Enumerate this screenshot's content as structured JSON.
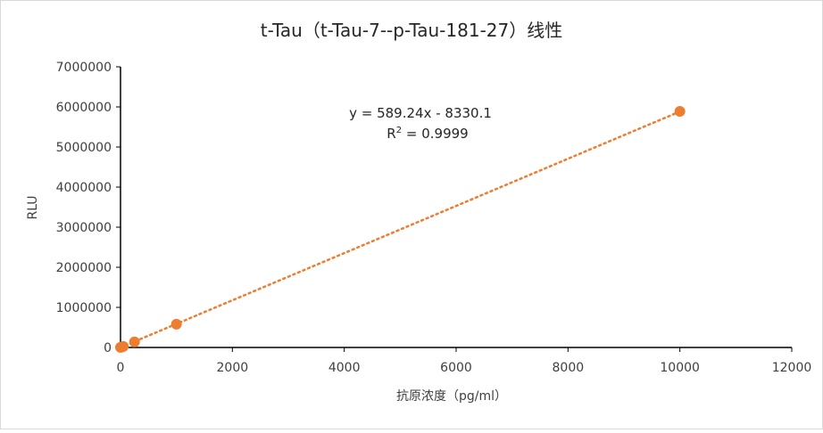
{
  "chart_data": {
    "type": "scatter",
    "title": "t-Tau（t-Tau-7--p-Tau-181-27）线性",
    "xlabel": "抗原浓度（pg/ml）",
    "ylabel": "RLU",
    "xlim": [
      0,
      12000
    ],
    "ylim": [
      0,
      7000000
    ],
    "x_ticks": [
      "0",
      "2000",
      "4000",
      "6000",
      "8000",
      "10000",
      "12000"
    ],
    "y_ticks": [
      "0",
      "1000000",
      "2000000",
      "3000000",
      "4000000",
      "5000000",
      "6000000",
      "7000000"
    ],
    "series": [
      {
        "color": "#ed7d31",
        "points": [
          {
            "x": 0,
            "y": 2000
          },
          {
            "x": 10,
            "y": 6000
          },
          {
            "x": 50,
            "y": 25000
          },
          {
            "x": 250,
            "y": 140000
          },
          {
            "x": 1000,
            "y": 580000
          },
          {
            "x": 10000,
            "y": 5890000
          }
        ]
      }
    ],
    "trendline": {
      "type": "linear",
      "color": "#ed7d31",
      "style": "dotted",
      "slope": 589.24,
      "intercept": -8330.1,
      "x_range": [
        0,
        10000
      ]
    },
    "annotations": {
      "equation": "y = 589.24x - 8330.1",
      "r2_prefix": "R",
      "r2_sup": "2",
      "r2_value": " = 0.9999"
    },
    "legend": "none",
    "grid": false
  }
}
